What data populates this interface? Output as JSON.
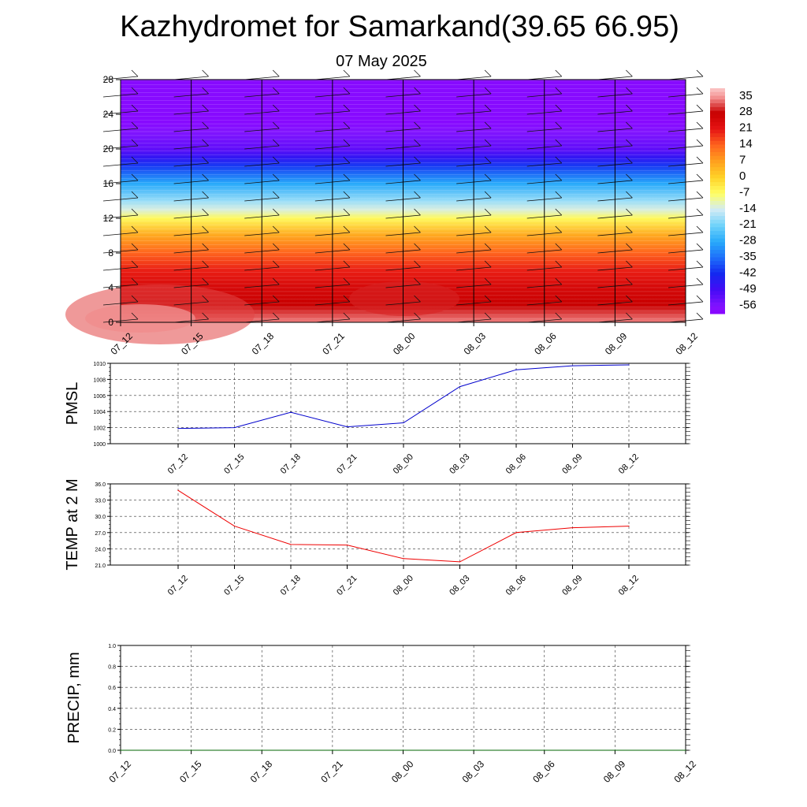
{
  "figure": {
    "title": "Kazhydromet for Samarkand(39.65 66.95)",
    "subtitle": "07 May 2025"
  },
  "chart_data": [
    {
      "type": "heatmap",
      "title": "",
      "x_tick_labels": [
        "07_12",
        "07_15",
        "07_18",
        "07_21",
        "08_00",
        "08_03",
        "08_06",
        "08_09",
        "08_12"
      ],
      "y_ticks": [
        0,
        4,
        8,
        12,
        16,
        20,
        24,
        28
      ],
      "ylim": [
        0,
        28
      ],
      "colorbar": {
        "labels": [
          35,
          28,
          21,
          14,
          7,
          0,
          -7,
          -14,
          -21,
          -28,
          -35,
          -42,
          -49,
          -56
        ],
        "range": [
          -60,
          38
        ]
      },
      "temperature_profile": [
        {
          "level": 0,
          "value": 34
        },
        {
          "level": 2,
          "value": 28
        },
        {
          "level": 4,
          "value": 25
        },
        {
          "level": 6,
          "value": 20
        },
        {
          "level": 8,
          "value": 14
        },
        {
          "level": 10,
          "value": 6
        },
        {
          "level": 12,
          "value": -6
        },
        {
          "level": 13,
          "value": -13
        },
        {
          "level": 14,
          "value": -18
        },
        {
          "level": 16,
          "value": -28
        },
        {
          "level": 18,
          "value": -40
        },
        {
          "level": 19,
          "value": -46
        },
        {
          "level": 20,
          "value": -52
        },
        {
          "level": 22,
          "value": -56
        },
        {
          "level": 23,
          "value": -58
        },
        {
          "level": 28,
          "value": -58
        }
      ],
      "wind_barb_levels": [
        0,
        2,
        4,
        6,
        8,
        10,
        12,
        14,
        16,
        18,
        20,
        22,
        24,
        26,
        28
      ]
    },
    {
      "type": "line",
      "ylabel": "PMSL",
      "x": [
        "07_12",
        "07_15",
        "07_18",
        "07_21",
        "08_00",
        "08_03",
        "08_06",
        "08_09",
        "08_12"
      ],
      "series": [
        {
          "values": [
            1001.9,
            1002.0,
            1003.9,
            1002.1,
            1002.6,
            1007.1,
            1009.2,
            1009.7,
            1009.8
          ]
        }
      ],
      "y_ticks": [
        "1000",
        "1002",
        "1004",
        "1006",
        "1008",
        "1010"
      ],
      "ylim": [
        1000,
        1010
      ],
      "color": "#0000cc",
      "grid": true
    },
    {
      "type": "line",
      "ylabel": "TEMP at 2 M",
      "x": [
        "07_12",
        "07_15",
        "07_18",
        "07_21",
        "08_00",
        "08_03",
        "08_06",
        "08_09",
        "08_12"
      ],
      "series": [
        {
          "values": [
            34.8,
            28.2,
            24.8,
            24.7,
            22.2,
            21.6,
            27.0,
            27.9,
            28.2
          ]
        }
      ],
      "y_ticks": [
        "21.0",
        "24.0",
        "27.0",
        "30.0",
        "33.0",
        "36.0"
      ],
      "ylim": [
        21,
        36
      ],
      "color": "#ee0000",
      "grid": true
    },
    {
      "type": "line",
      "ylabel": "PRECIP, mm",
      "x": [
        "07_12",
        "07_15",
        "07_18",
        "07_21",
        "08_00",
        "08_03",
        "08_06",
        "08_09",
        "08_12"
      ],
      "series": [
        {
          "values": [
            0,
            0,
            0,
            0,
            0,
            0,
            0,
            0,
            0
          ]
        }
      ],
      "y_ticks": [
        "0.0",
        "0.2",
        "0.4",
        "0.6",
        "0.8",
        "1.0"
      ],
      "ylim": [
        0,
        1
      ],
      "color": "#006400",
      "grid": true
    }
  ]
}
